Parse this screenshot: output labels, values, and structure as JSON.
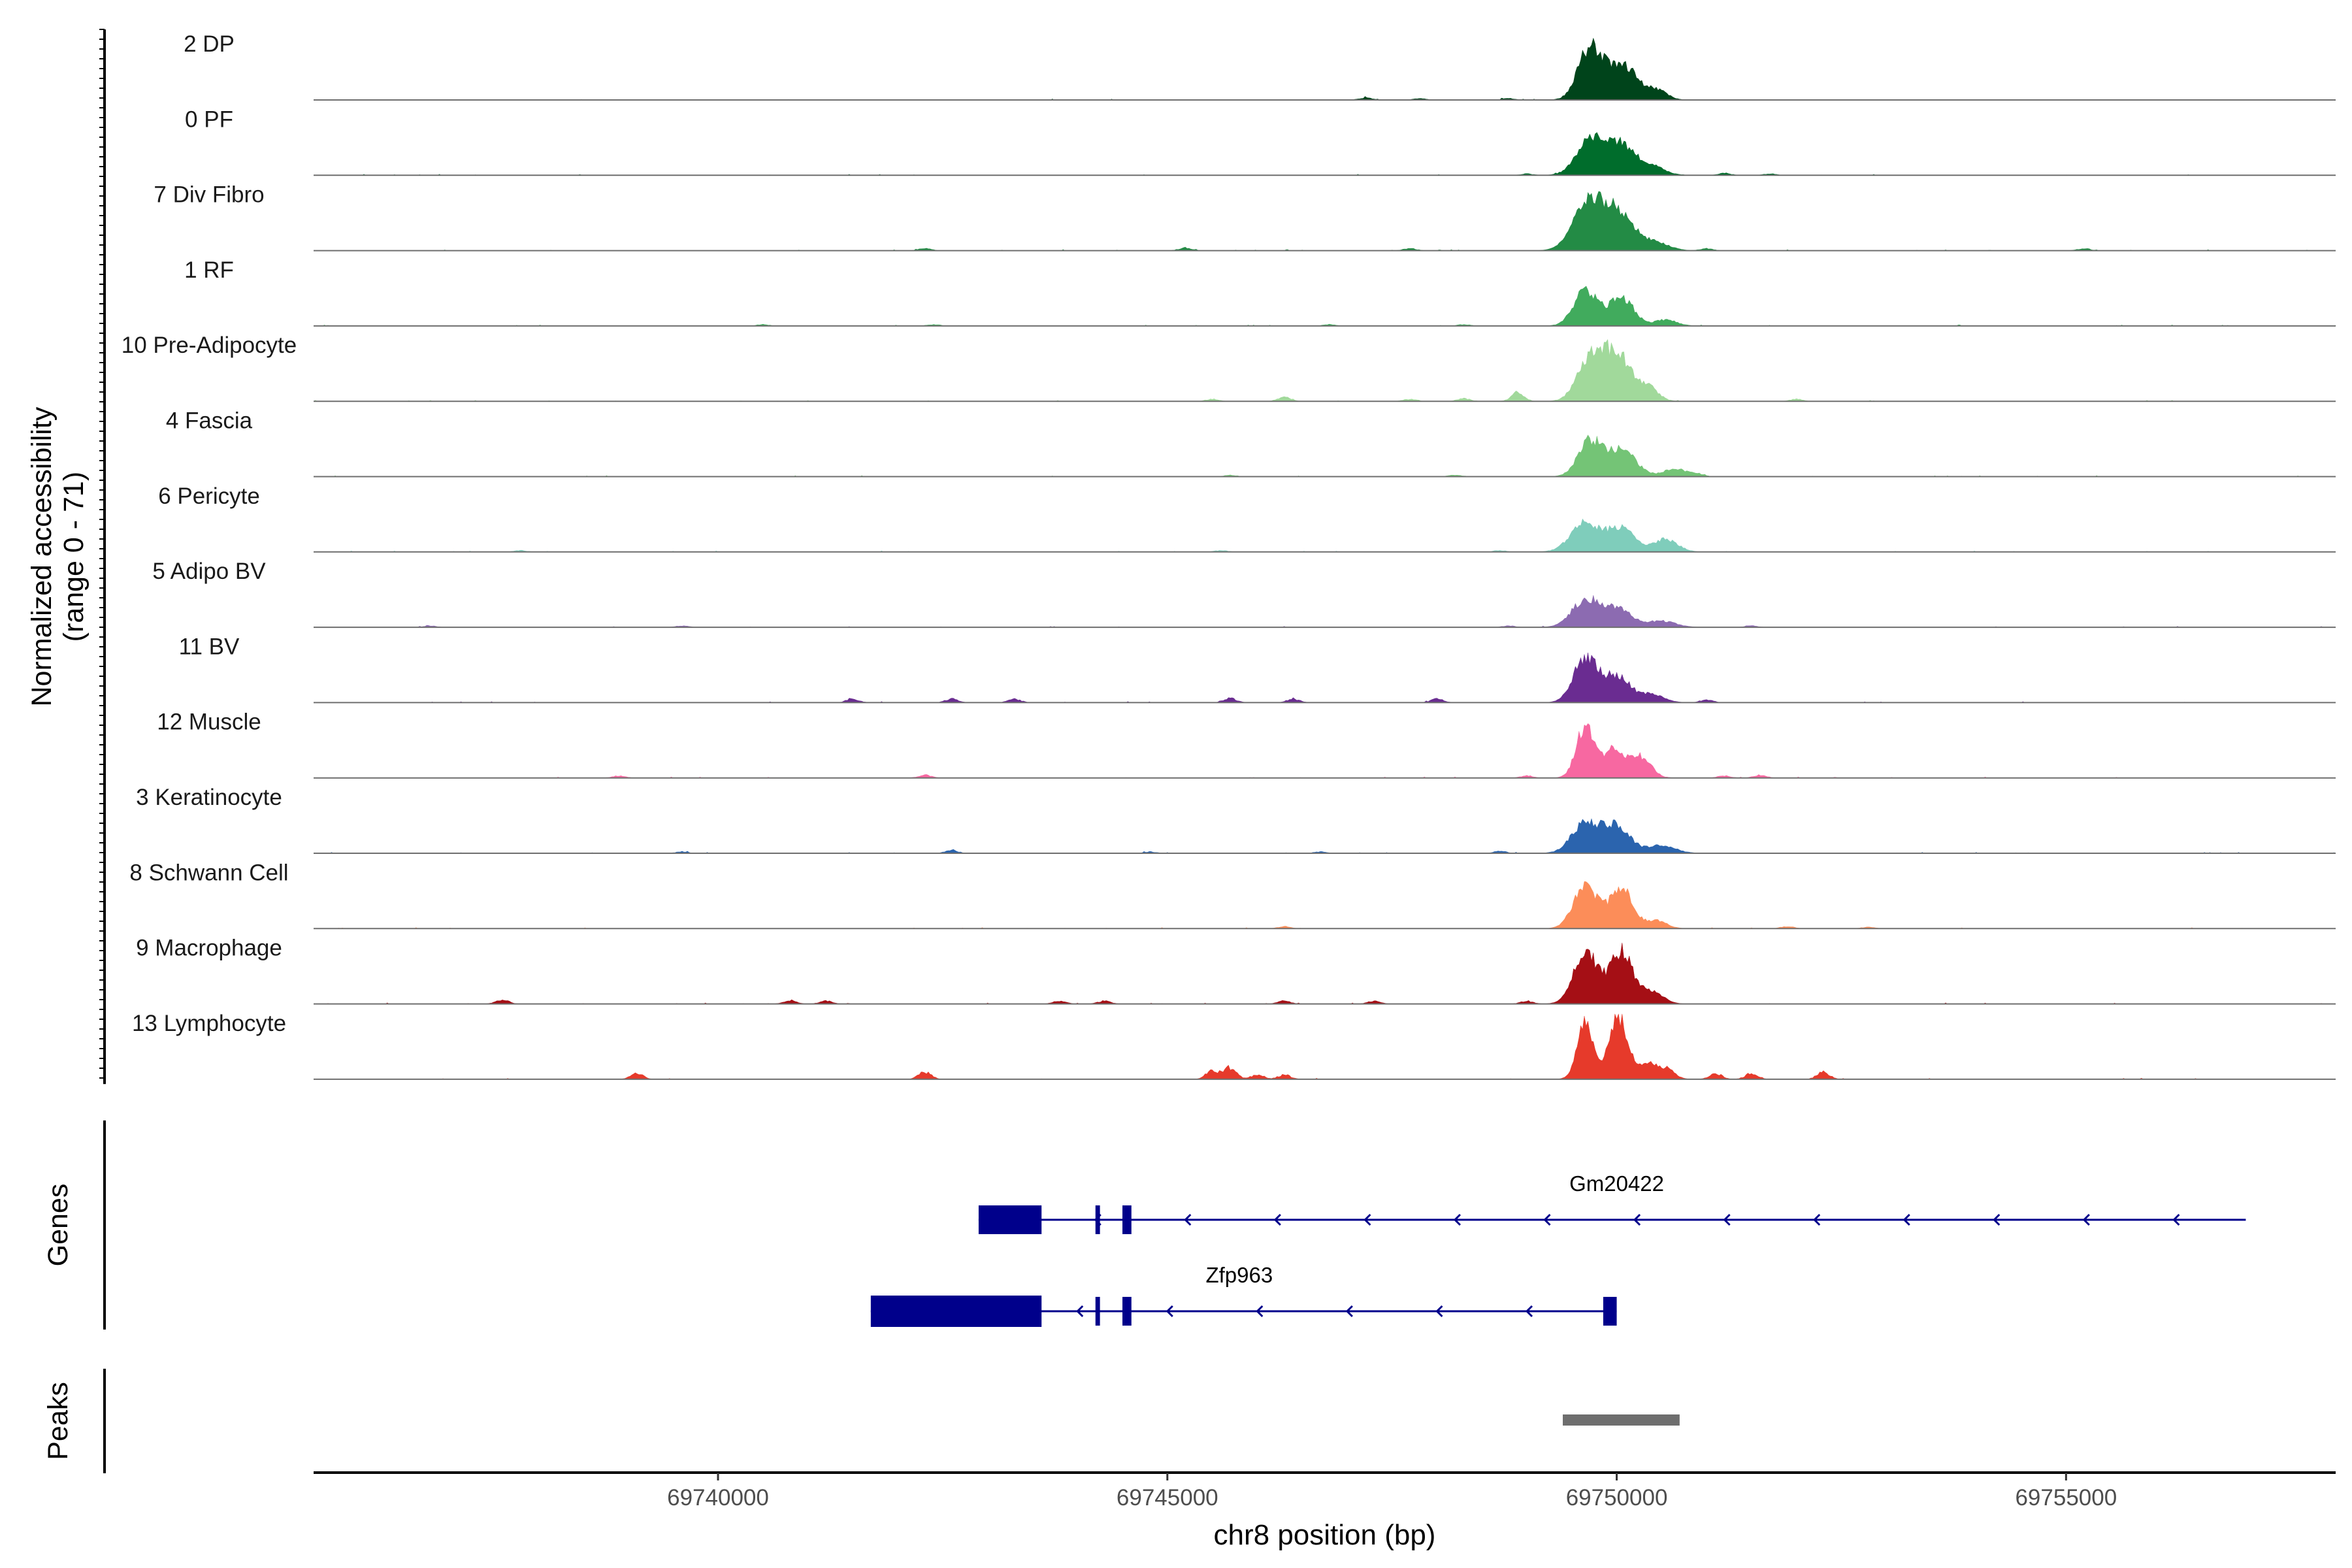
{
  "chart_data": {
    "type": "area",
    "title": "",
    "ylabel": "Normalized accessibility",
    "ylabel_range": "(range 0 - 71)",
    "ylim": [
      0,
      71
    ],
    "xlabel": "chr8 position (bp)",
    "xlim": [
      69735500,
      69758000
    ],
    "x_ticks": [
      69740000,
      69745000,
      69750000,
      69755000
    ],
    "x_tick_labels": [
      "69740000",
      "69745000",
      "69750000",
      "69755000"
    ],
    "tracks": [
      {
        "name": "2 DP",
        "color": "#00441b",
        "peaks": [
          [
            69749700,
            64,
            130
          ],
          [
            69750050,
            46,
            170
          ],
          [
            69750450,
            12,
            110
          ]
        ],
        "noise": [
          [
            69748800,
            2
          ],
          [
            69747800,
            2
          ],
          [
            69747200,
            3
          ]
        ]
      },
      {
        "name": "0 PF",
        "color": "#006d2c",
        "peaks": [
          [
            69749700,
            46,
            150
          ],
          [
            69750050,
            38,
            160
          ],
          [
            69750400,
            10,
            140
          ]
        ],
        "noise": [
          [
            69749000,
            2
          ],
          [
            69751200,
            3
          ],
          [
            69751700,
            2
          ]
        ]
      },
      {
        "name": "7 Div Fibro",
        "color": "#238b45",
        "peaks": [
          [
            69749700,
            66,
            170
          ],
          [
            69750050,
            44,
            160
          ],
          [
            69750450,
            10,
            140
          ]
        ],
        "noise": [
          [
            69742300,
            3
          ],
          [
            69745200,
            4
          ],
          [
            69747700,
            3
          ],
          [
            69751000,
            3
          ],
          [
            69755200,
            3
          ]
        ]
      },
      {
        "name": "1 RF",
        "color": "#41ab5d",
        "peaks": [
          [
            69749650,
            44,
            130
          ],
          [
            69750050,
            36,
            140
          ],
          [
            69750550,
            8,
            120
          ]
        ],
        "noise": [
          [
            69740500,
            2
          ],
          [
            69742400,
            2
          ],
          [
            69746800,
            2
          ],
          [
            69748300,
            2
          ]
        ]
      },
      {
        "name": "10 Pre-Adipocyte",
        "color": "#a1d99b",
        "peaks": [
          [
            69749700,
            54,
            140
          ],
          [
            69750000,
            60,
            150
          ],
          [
            69750350,
            18,
            110
          ]
        ],
        "noise": [
          [
            69745500,
            3
          ],
          [
            69746300,
            6
          ],
          [
            69747700,
            3
          ],
          [
            69748300,
            4
          ],
          [
            69748900,
            12
          ],
          [
            69752000,
            3
          ]
        ]
      },
      {
        "name": "4 Fascia",
        "color": "#74c476",
        "peaks": [
          [
            69749700,
            44,
            130
          ],
          [
            69750050,
            34,
            160
          ],
          [
            69750650,
            10,
            130
          ]
        ],
        "noise": [
          [
            69745700,
            2
          ],
          [
            69748200,
            2
          ],
          [
            69750900,
            3
          ]
        ]
      },
      {
        "name": "6 Pericyte",
        "color": "#7fcdbb",
        "peaks": [
          [
            69749650,
            38,
            160
          ],
          [
            69750050,
            30,
            150
          ],
          [
            69750550,
            16,
            130
          ]
        ],
        "noise": [
          [
            69737800,
            2
          ],
          [
            69745600,
            2
          ],
          [
            69748700,
            2
          ]
        ]
      },
      {
        "name": "5 Adipo BV",
        "color": "#8c6bb1",
        "peaks": [
          [
            69749650,
            34,
            150
          ],
          [
            69750000,
            24,
            160
          ],
          [
            69750500,
            8,
            150
          ]
        ],
        "noise": [
          [
            69736800,
            2
          ],
          [
            69739600,
            2
          ],
          [
            69748800,
            2
          ],
          [
            69751500,
            2
          ]
        ]
      },
      {
        "name": "11 BV",
        "color": "#6a2c91",
        "peaks": [
          [
            69749650,
            56,
            130
          ],
          [
            69750000,
            34,
            150
          ],
          [
            69750400,
            10,
            130
          ]
        ],
        "noise": [
          [
            69741500,
            5
          ],
          [
            69742600,
            5
          ],
          [
            69743300,
            5
          ],
          [
            69745700,
            6
          ],
          [
            69746400,
            5
          ],
          [
            69748000,
            5
          ],
          [
            69751000,
            4
          ]
        ]
      },
      {
        "name": "12 Muscle",
        "color": "#f768a1",
        "peaks": [
          [
            69749650,
            66,
            100
          ],
          [
            69749950,
            34,
            110
          ],
          [
            69750250,
            28,
            120
          ]
        ],
        "noise": [
          [
            69738900,
            3
          ],
          [
            69742300,
            4
          ],
          [
            69749000,
            3
          ],
          [
            69751200,
            3
          ],
          [
            69751600,
            4
          ]
        ]
      },
      {
        "name": "3 Keratinocyte",
        "color": "#2b64ae",
        "peaks": [
          [
            69749650,
            38,
            150
          ],
          [
            69750000,
            34,
            150
          ],
          [
            69750500,
            10,
            150
          ]
        ],
        "noise": [
          [
            69739600,
            2
          ],
          [
            69742600,
            4
          ],
          [
            69744800,
            2
          ],
          [
            69746700,
            2
          ],
          [
            69748700,
            3
          ]
        ]
      },
      {
        "name": "8 Schwann Cell",
        "color": "#fc8d59",
        "peaks": [
          [
            69749650,
            56,
            130
          ],
          [
            69750050,
            52,
            130
          ],
          [
            69750450,
            10,
            110
          ]
        ],
        "noise": [
          [
            69746300,
            3
          ],
          [
            69751900,
            3
          ],
          [
            69752800,
            2
          ]
        ]
      },
      {
        "name": "9 Macrophage",
        "color": "#a50f15",
        "peaks": [
          [
            69749650,
            66,
            130
          ],
          [
            69750050,
            66,
            130
          ],
          [
            69750400,
            14,
            120
          ]
        ],
        "noise": [
          [
            69737600,
            6
          ],
          [
            69740800,
            5
          ],
          [
            69741200,
            4
          ],
          [
            69743800,
            4
          ],
          [
            69744300,
            4
          ],
          [
            69746300,
            4
          ],
          [
            69747300,
            4
          ],
          [
            69749000,
            4
          ]
        ]
      },
      {
        "name": "13 Lymphocyte",
        "color": "#e63a2b",
        "peaks": [
          [
            69749650,
            71,
            90
          ],
          [
            69749950,
            28,
            70
          ],
          [
            69750050,
            66,
            100
          ],
          [
            69750350,
            20,
            80
          ],
          [
            69750550,
            14,
            90
          ]
        ],
        "noise": [
          [
            69739100,
            8
          ],
          [
            69742300,
            10
          ],
          [
            69745500,
            12
          ],
          [
            69745700,
            16
          ],
          [
            69746000,
            6
          ],
          [
            69746300,
            6
          ],
          [
            69751100,
            8
          ],
          [
            69751500,
            8
          ],
          [
            69752300,
            10
          ]
        ]
      }
    ],
    "genes": [
      {
        "name": "Gm20422",
        "strand": "-",
        "start": 69742900,
        "end": 69757000,
        "exons": [
          [
            69742900,
            69743600
          ],
          [
            69744200,
            69744250
          ],
          [
            69744500,
            69744600
          ]
        ]
      },
      {
        "name": "Zfp963",
        "strand": "-",
        "start": 69741700,
        "end": 69750000,
        "exons": [
          [
            69741700,
            69743600
          ],
          [
            69744200,
            69744250
          ],
          [
            69744500,
            69744600
          ],
          [
            69749850,
            69750000
          ]
        ]
      }
    ],
    "peaks": [
      [
        69749400,
        69750700
      ]
    ],
    "panels": [
      "Genes",
      "Peaks"
    ]
  }
}
